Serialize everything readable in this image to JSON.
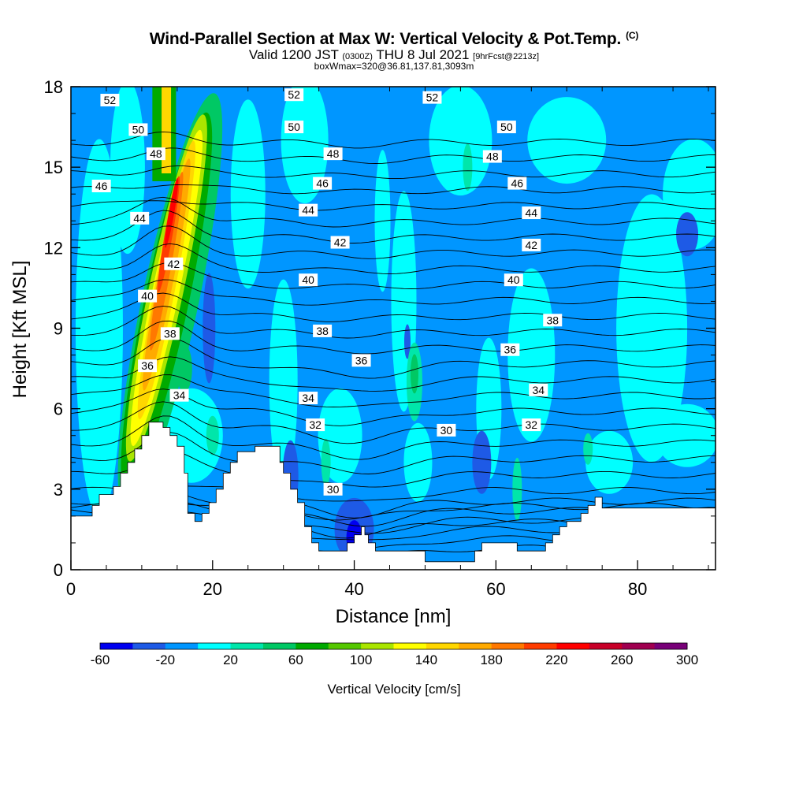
{
  "header": {
    "title": "Wind-Parallel Section at Max W: Vertical Velocity & Pot.Temp.",
    "title_units": "(C)",
    "valid_main_a": "Valid 1200 JST",
    "valid_small_a": "(0300Z)",
    "valid_main_b": "THU 8 Jul 2021",
    "valid_small_b": "[9hrFcst@2213z]",
    "box_info": "boxWmax=320@36.81,137.81,3093m"
  },
  "chart_data": {
    "type": "heatmap",
    "xlabel": "Distance [nm]",
    "ylabel": "Height [Kft MSL]",
    "xlim": [
      0,
      91
    ],
    "ylim": [
      0,
      18
    ],
    "x_ticks": [
      "0",
      "20",
      "40",
      "60",
      "80"
    ],
    "y_ticks": [
      "0",
      "3",
      "6",
      "9",
      "12",
      "15",
      "18"
    ],
    "colorbar": {
      "label": "Vertical Velocity [cm/s]",
      "tick_labels": [
        "-60",
        "-20",
        "20",
        "60",
        "100",
        "140",
        "180",
        "220",
        "260",
        "300"
      ],
      "colors": [
        "#0000f0",
        "#1e5ae6",
        "#0096ff",
        "#00ffff",
        "#00e6aa",
        "#00c864",
        "#00aa00",
        "#55c800",
        "#aae600",
        "#ffff00",
        "#ffd700",
        "#ffaa00",
        "#ff7800",
        "#ff3c00",
        "#ff0000",
        "#c80028",
        "#a00050",
        "#780078"
      ]
    },
    "wmax_cm_s": 320,
    "theta_contours": [
      {
        "label": "52",
        "x": 5.5,
        "y": 17.5
      },
      {
        "label": "52",
        "x": 31.5,
        "y": 17.7
      },
      {
        "label": "52",
        "x": 51,
        "y": 17.6
      },
      {
        "label": "50",
        "x": 9.5,
        "y": 16.4
      },
      {
        "label": "50",
        "x": 31.5,
        "y": 16.5
      },
      {
        "label": "50",
        "x": 61.5,
        "y": 16.5
      },
      {
        "label": "48",
        "x": 12,
        "y": 15.5
      },
      {
        "label": "48",
        "x": 37,
        "y": 15.5
      },
      {
        "label": "48",
        "x": 59.5,
        "y": 15.4
      },
      {
        "label": "46",
        "x": 4.3,
        "y": 14.3
      },
      {
        "label": "46",
        "x": 35.5,
        "y": 14.4
      },
      {
        "label": "46",
        "x": 63,
        "y": 14.4
      },
      {
        "label": "44",
        "x": 9.7,
        "y": 13.1
      },
      {
        "label": "44",
        "x": 33.5,
        "y": 13.4
      },
      {
        "label": "44",
        "x": 65,
        "y": 13.3
      },
      {
        "label": "42",
        "x": 14.5,
        "y": 11.4
      },
      {
        "label": "42",
        "x": 38,
        "y": 12.2
      },
      {
        "label": "42",
        "x": 65,
        "y": 12.1
      },
      {
        "label": "40",
        "x": 10.8,
        "y": 10.2
      },
      {
        "label": "40",
        "x": 33.5,
        "y": 10.8
      },
      {
        "label": "40",
        "x": 62.5,
        "y": 10.8
      },
      {
        "label": "38",
        "x": 14,
        "y": 8.8
      },
      {
        "label": "38",
        "x": 35.5,
        "y": 8.9
      },
      {
        "label": "38",
        "x": 68,
        "y": 9.3
      },
      {
        "label": "36",
        "x": 10.8,
        "y": 7.6
      },
      {
        "label": "36",
        "x": 41,
        "y": 7.8
      },
      {
        "label": "36",
        "x": 62,
        "y": 8.2
      },
      {
        "label": "34",
        "x": 15.3,
        "y": 6.5
      },
      {
        "label": "34",
        "x": 33.5,
        "y": 6.4
      },
      {
        "label": "34",
        "x": 66,
        "y": 6.7
      },
      {
        "label": "32",
        "x": 34.5,
        "y": 5.4
      },
      {
        "label": "32",
        "x": 65,
        "y": 5.4
      },
      {
        "label": "30",
        "x": 37,
        "y": 3
      },
      {
        "label": "30",
        "x": 53,
        "y": 5.2
      }
    ]
  }
}
